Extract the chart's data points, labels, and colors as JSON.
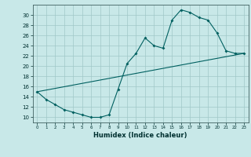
{
  "title": "",
  "xlabel": "Humidex (Indice chaleur)",
  "ylabel": "",
  "bg_color": "#c8e8e8",
  "line_color": "#006060",
  "xlim": [
    -0.5,
    23.5
  ],
  "ylim": [
    9,
    32
  ],
  "xticks": [
    0,
    1,
    2,
    3,
    4,
    5,
    6,
    7,
    8,
    9,
    10,
    11,
    12,
    13,
    14,
    15,
    16,
    17,
    18,
    19,
    20,
    21,
    22,
    23
  ],
  "yticks": [
    10,
    12,
    14,
    16,
    18,
    20,
    22,
    24,
    26,
    28,
    30
  ],
  "grid_color": "#a0c8c8",
  "series1_x": [
    0,
    1,
    2,
    3,
    4,
    5,
    6,
    7,
    8,
    9,
    10,
    11,
    12,
    13,
    14,
    15,
    16,
    17,
    18,
    19,
    20,
    21,
    22,
    23
  ],
  "series1_y": [
    15.0,
    13.5,
    12.5,
    11.5,
    11.0,
    10.5,
    10.0,
    10.0,
    10.5,
    15.5,
    20.5,
    22.5,
    25.5,
    24.0,
    23.5,
    29.0,
    31.0,
    30.5,
    29.5,
    29.0,
    26.5,
    23.0,
    22.5,
    22.5
  ],
  "series2_x": [
    0,
    23
  ],
  "series2_y": [
    15.0,
    22.5
  ]
}
